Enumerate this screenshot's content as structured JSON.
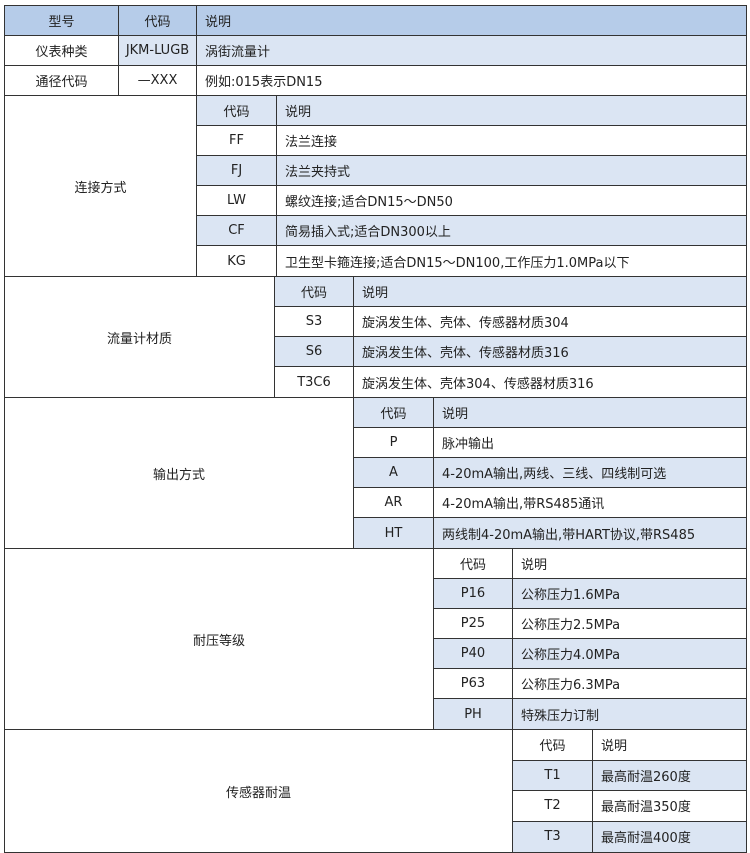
{
  "header": {
    "model": "型号",
    "code": "代码",
    "desc": "说明"
  },
  "top_rows": [
    {
      "label": "仪表种类",
      "code": "JKM-LUGB",
      "desc": "涡街流量计"
    },
    {
      "label": "通径代码",
      "code": "—XXX",
      "desc": "例如:015表示DN15"
    }
  ],
  "colors": {
    "header": "#b6cce9",
    "shaded_row": "#dbe5f3",
    "border": "#333333"
  },
  "sections": [
    {
      "label": "连接方式",
      "header_shaded": true,
      "shaded": [
        false,
        true,
        false,
        true,
        false
      ],
      "sub_header": {
        "code": "代码",
        "desc": "说明"
      },
      "items": [
        {
          "code": "FF",
          "desc": "法兰连接"
        },
        {
          "code": "FJ",
          "desc": "法兰夹持式"
        },
        {
          "code": "LW",
          "desc": "螺纹连接;适合DN15～DN50"
        },
        {
          "code": "CF",
          "desc": "简易插入式;适合DN300以上"
        },
        {
          "code": "KG",
          "desc": "卫生型卡箍连接;适合DN15～DN100,工作压力1.0MPa以下"
        }
      ]
    },
    {
      "label": "流量计材质",
      "header_shaded": true,
      "shaded": [
        false,
        true,
        false
      ],
      "sub_header": {
        "code": "代码",
        "desc": "说明"
      },
      "items": [
        {
          "code": "S3",
          "desc": "旋涡发生体、壳体、传感器材质304"
        },
        {
          "code": "S6",
          "desc": "旋涡发生体、壳体、传感器材质316"
        },
        {
          "code": "T3C6",
          "desc": "旋涡发生体、壳体304、传感器材质316"
        }
      ]
    },
    {
      "label": "输出方式",
      "header_shaded": true,
      "shaded": [
        false,
        true,
        false,
        true
      ],
      "sub_header": {
        "code": "代码",
        "desc": "说明"
      },
      "items": [
        {
          "code": "P",
          "desc": "脉冲输出"
        },
        {
          "code": "A",
          "desc": "4-20mA输出,两线、三线、四线制可选"
        },
        {
          "code": "AR",
          "desc": "4-20mA输出,带RS485通讯"
        },
        {
          "code": "HT",
          "desc": "两线制4-20mA输出,带HART协议,带RS485"
        }
      ]
    },
    {
      "label": "耐压等级",
      "header_shaded": false,
      "shaded": [
        true,
        false,
        true,
        false,
        true
      ],
      "sub_header": {
        "code": "代码",
        "desc": "说明"
      },
      "items": [
        {
          "code": "P16",
          "desc": "公称压力1.6MPa"
        },
        {
          "code": "P25",
          "desc": "公称压力2.5MPa"
        },
        {
          "code": "P40",
          "desc": "公称压力4.0MPa"
        },
        {
          "code": "P63",
          "desc": "公称压力6.3MPa"
        },
        {
          "code": "PH",
          "desc": "特殊压力订制"
        }
      ]
    },
    {
      "label": "传感器耐温",
      "header_shaded": false,
      "shaded": [
        true,
        false,
        true
      ],
      "sub_header": {
        "code": "代码",
        "desc": "说明"
      },
      "items": [
        {
          "code": "T1",
          "desc": "最高耐温260度"
        },
        {
          "code": "T2",
          "desc": "最高耐温350度"
        },
        {
          "code": "T3",
          "desc": "最高耐温400度"
        }
      ]
    }
  ]
}
